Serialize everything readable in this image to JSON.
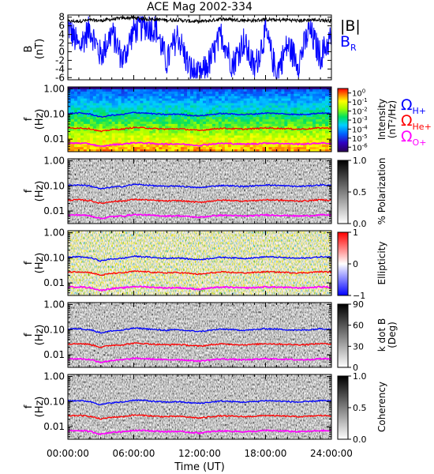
{
  "title": "ACE Mag 2002-334",
  "xlabel": "Time (UT)",
  "x_ticks": [
    "00:00:00",
    "06:00:00",
    "12:00:00",
    "18:00:00",
    "24:00:00"
  ],
  "legend_top": {
    "B_abs": "|B|",
    "B_R_main": "B",
    "B_R_sub": "R"
  },
  "gyro_legend": [
    {
      "main": "Ω",
      "sub": "H+",
      "color": "#0000ff"
    },
    {
      "main": "Ω",
      "sub": "He+",
      "color": "#ff0000"
    },
    {
      "main": "Ω",
      "sub": "O+",
      "color": "#ff00ff"
    }
  ],
  "colors": {
    "B_abs": "#000000",
    "B_R": "#0000ff",
    "H": "#0000ff",
    "He": "#ff0000",
    "O": "#ff00ff"
  },
  "chart_data": [
    {
      "type": "line",
      "ylabel_line1": "B",
      "ylabel_line2": "(nT)",
      "yticks": [
        8,
        6,
        4,
        2,
        0,
        -2,
        -4,
        -6
      ],
      "ylim": [
        -6.5,
        8.5
      ],
      "xlim_hours": [
        0,
        24
      ],
      "series": [
        {
          "name": "|B|",
          "color": "#000000",
          "x": [
            0,
            1,
            2,
            3,
            4,
            5,
            6,
            7,
            8,
            9,
            10,
            11,
            12,
            13,
            14,
            15,
            16,
            17,
            18,
            19,
            20,
            21,
            22,
            23,
            24
          ],
          "values": [
            7.0,
            7.1,
            7.3,
            7.2,
            7.5,
            7.8,
            7.9,
            7.6,
            7.5,
            7.3,
            7.4,
            7.1,
            7.0,
            7.2,
            7.6,
            7.4,
            7.3,
            7.2,
            7.5,
            7.3,
            7.4,
            7.2,
            7.4,
            7.3,
            7.2
          ]
        },
        {
          "name": "B_R",
          "color": "#0000ff",
          "x": [
            0,
            1,
            2,
            3,
            4,
            5,
            6,
            7,
            8,
            9,
            10,
            11,
            12,
            13,
            14,
            15,
            16,
            17,
            18,
            19,
            20,
            21,
            22,
            23,
            24
          ],
          "values": [
            6.0,
            1.0,
            5.5,
            -1.0,
            4.5,
            -2.0,
            5.0,
            6.0,
            5.5,
            -2.5,
            4.0,
            -3.5,
            -6.0,
            -2.0,
            4.0,
            -3.0,
            2.5,
            -4.0,
            4.5,
            -5.0,
            1.5,
            -2.5,
            5.0,
            -1.0,
            3.5
          ]
        }
      ]
    },
    {
      "type": "heatmap",
      "ylabel_line1": "f",
      "ylabel_line2": "(Hz)",
      "yticks": [
        "1.00",
        "0.10",
        "0.01"
      ],
      "ylim_log": [
        -2.5,
        0.08
      ],
      "colorbar": {
        "label_line1": "Intensity",
        "label_line2": "(nT²/Hz)",
        "ticks": [
          {
            "base": "10",
            "exp": "0"
          },
          {
            "base": "10",
            "exp": "-1"
          },
          {
            "base": "10",
            "exp": "-2"
          },
          {
            "base": "10",
            "exp": "-3"
          },
          {
            "base": "10",
            "exp": "-4"
          },
          {
            "base": "10",
            "exp": "-5"
          },
          {
            "base": "10",
            "exp": "-6"
          }
        ],
        "range_log": [
          -6.5,
          0.5
        ]
      },
      "series": [
        {
          "name": "Ω H+",
          "color": "#0000ff",
          "freq_hz": [
            0.105,
            0.11,
            0.1,
            0.075,
            0.09,
            0.095,
            0.115,
            0.11,
            0.1,
            0.095,
            0.1,
            0.09,
            0.085,
            0.095,
            0.105,
            0.1,
            0.095,
            0.1,
            0.11,
            0.105,
            0.1,
            0.095,
            0.1,
            0.11,
            0.105
          ]
        },
        {
          "name": "Ω He+",
          "color": "#ff0000",
          "freq_hz": [
            0.027,
            0.028,
            0.026,
            0.02,
            0.024,
            0.025,
            0.029,
            0.028,
            0.026,
            0.025,
            0.026,
            0.024,
            0.022,
            0.025,
            0.027,
            0.026,
            0.025,
            0.026,
            0.028,
            0.027,
            0.026,
            0.025,
            0.026,
            0.028,
            0.027
          ]
        },
        {
          "name": "Ω O+",
          "color": "#ff00ff",
          "freq_hz": [
            0.0068,
            0.007,
            0.0065,
            0.005,
            0.006,
            0.0063,
            0.0072,
            0.007,
            0.0066,
            0.0063,
            0.0065,
            0.006,
            0.0056,
            0.0063,
            0.0068,
            0.0066,
            0.0063,
            0.0065,
            0.007,
            0.0068,
            0.0066,
            0.0063,
            0.0065,
            0.007,
            0.0068
          ]
        }
      ]
    },
    {
      "type": "heatmap",
      "ylabel_line1": "f",
      "ylabel_line2": "(Hz)",
      "yticks": [
        "1.00",
        "0.10",
        "0.01"
      ],
      "colorbar": {
        "label_line1": "% Polarization",
        "label_line2": "",
        "ticks": [
          "1.0",
          "0.5",
          "0.0"
        ],
        "range": [
          0,
          1
        ]
      }
    },
    {
      "type": "heatmap",
      "ylabel_line1": "f",
      "ylabel_line2": "(Hz)",
      "yticks": [
        "1.00",
        "0.10",
        "0.01"
      ],
      "colorbar": {
        "label_line1": "Ellipticity",
        "label_line2": "",
        "ticks": [
          "1",
          "0",
          "−1"
        ],
        "range": [
          -1,
          1
        ]
      }
    },
    {
      "type": "heatmap",
      "ylabel_line1": "f",
      "ylabel_line2": "(Hz)",
      "yticks": [
        "1.00",
        "0.10",
        "0.01"
      ],
      "colorbar": {
        "label_line1": "k dot B",
        "label_line2": "(Deg)",
        "ticks": [
          "90",
          "60",
          "30",
          "0"
        ],
        "range": [
          0,
          90
        ]
      }
    },
    {
      "type": "heatmap",
      "ylabel_line1": "f",
      "ylabel_line2": "(Hz)",
      "yticks": [
        "1.00",
        "0.10",
        "0.01"
      ],
      "colorbar": {
        "label_line1": "Coherency",
        "label_line2": "",
        "ticks": [
          "1.0",
          "0.5",
          "0.0"
        ],
        "range": [
          0,
          1
        ]
      }
    }
  ]
}
